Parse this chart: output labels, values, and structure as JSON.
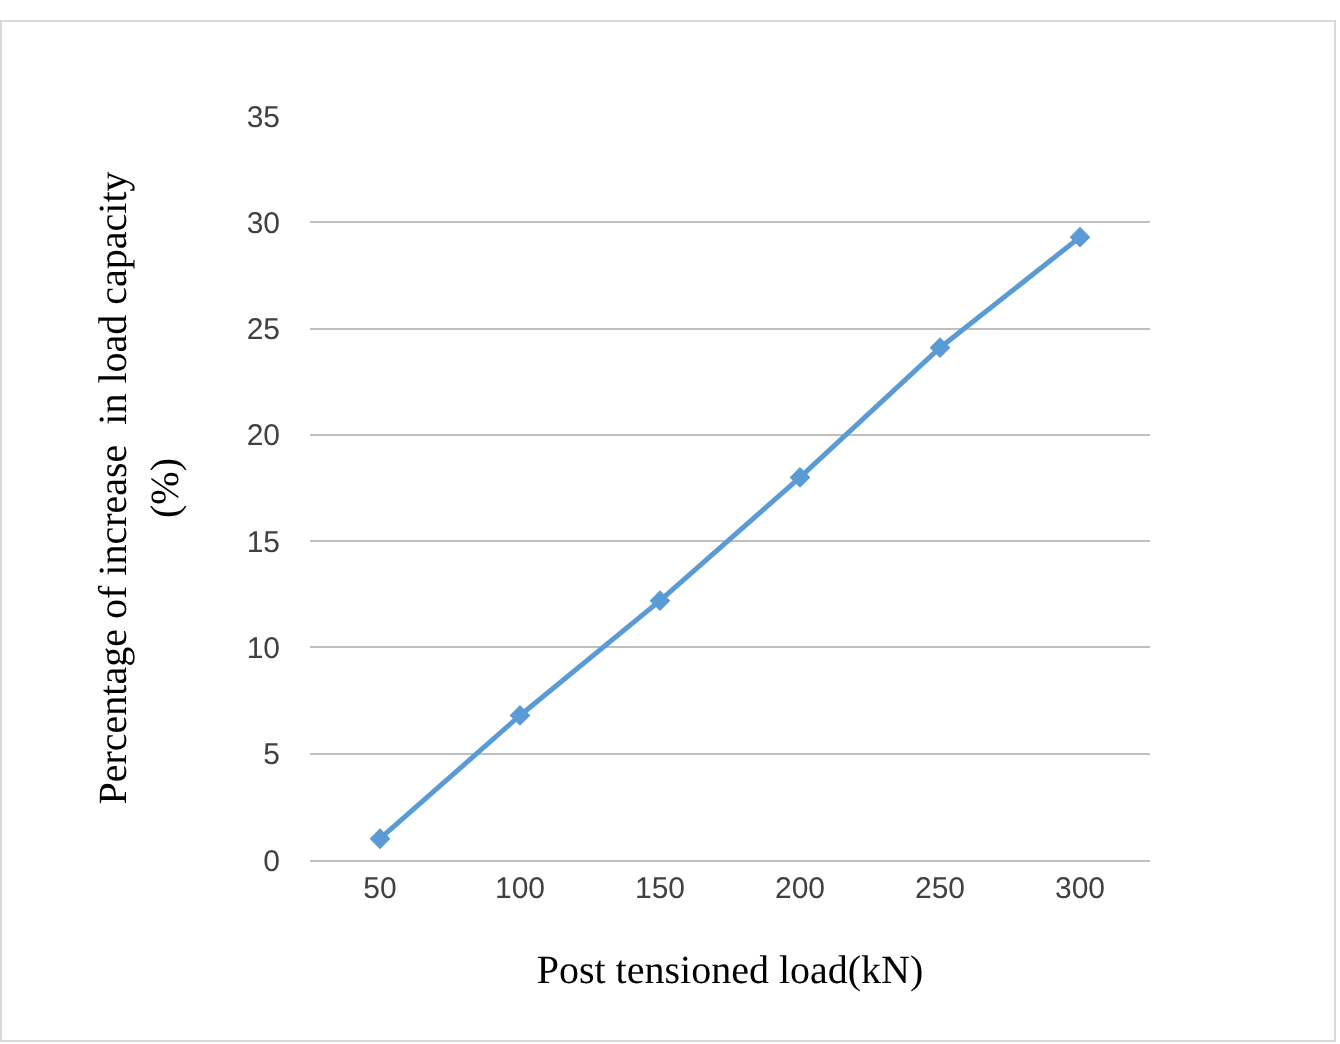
{
  "chart_data": {
    "type": "line",
    "xlabel": "Post tensioned load(kN)",
    "ylabel": "Percentage of increase  in load capacity\n(%)",
    "categories": [
      "50",
      "100",
      "150",
      "200",
      "250",
      "300"
    ],
    "series": [
      {
        "color": "#5b9bd5",
        "values": [
          1,
          6.8,
          12.2,
          18,
          24.1,
          29.3
        ]
      }
    ],
    "ylim": [
      0,
      35
    ],
    "yticks": [
      0,
      5,
      10,
      15,
      20,
      25,
      30,
      35
    ],
    "grid": "y",
    "marker": "diamond",
    "line_style": "solid"
  }
}
